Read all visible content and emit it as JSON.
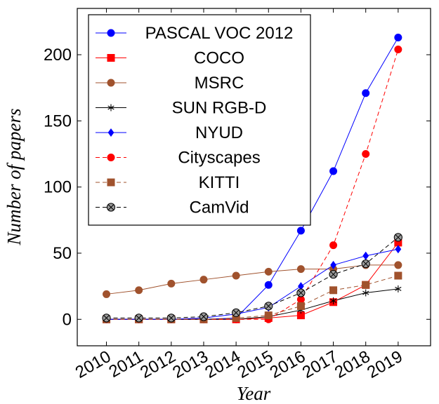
{
  "chart_data": {
    "type": "line",
    "title": "",
    "xlabel": "Year",
    "ylabel": "Number of papers",
    "x": [
      2010,
      2011,
      2012,
      2013,
      2014,
      2015,
      2016,
      2017,
      2018,
      2019
    ],
    "x_tick_labels": [
      "2010",
      "2011",
      "2012",
      "2013",
      "2014",
      "2015",
      "2016",
      "2017",
      "2018",
      "2019"
    ],
    "y_ticks": [
      0,
      50,
      100,
      150,
      200
    ],
    "xlim": [
      2009.1,
      2020.0
    ],
    "ylim": [
      -20,
      235
    ],
    "grid": false,
    "legend_position": "top-left",
    "series": [
      {
        "name": "PASCAL VOC 2012",
        "values": [
          0,
          0,
          0,
          0,
          1,
          26,
          67,
          112,
          171,
          213
        ],
        "color": "#0000ff",
        "dash": "solid",
        "marker": "circle"
      },
      {
        "name": "COCO",
        "values": [
          0,
          0,
          0,
          0,
          0,
          1,
          3,
          13,
          26,
          58
        ],
        "color": "#ff0000",
        "dash": "solid",
        "marker": "square"
      },
      {
        "name": "MSRC",
        "values": [
          19,
          22,
          27,
          30,
          33,
          36,
          38,
          38,
          41,
          41
        ],
        "color": "#a0522d",
        "dash": "solid",
        "marker": "circle"
      },
      {
        "name": "SUN RGB-D",
        "values": [
          0,
          0,
          0,
          0,
          0,
          2,
          7,
          14,
          20,
          23
        ],
        "color": "#000000",
        "dash": "solid",
        "marker": "star"
      },
      {
        "name": "NYUD",
        "values": [
          0,
          0,
          0,
          1,
          4,
          9,
          25,
          41,
          48,
          53
        ],
        "color": "#0000ff",
        "dash": "solid",
        "marker": "diamond"
      },
      {
        "name": "Cityscapes",
        "values": [
          0,
          0,
          0,
          0,
          0,
          0,
          15,
          56,
          125,
          204
        ],
        "color": "#ff0000",
        "dash": "dashed",
        "marker": "circle"
      },
      {
        "name": "KITTI",
        "values": [
          0,
          0,
          0,
          0,
          1,
          3,
          10,
          22,
          26,
          33
        ],
        "color": "#a0522d",
        "dash": "dashed",
        "marker": "square"
      },
      {
        "name": "CamVid",
        "values": [
          1,
          1,
          1,
          2,
          5,
          10,
          20,
          34,
          42,
          62
        ],
        "color": "#000000",
        "dash": "dashed",
        "marker": "otimes"
      }
    ]
  }
}
